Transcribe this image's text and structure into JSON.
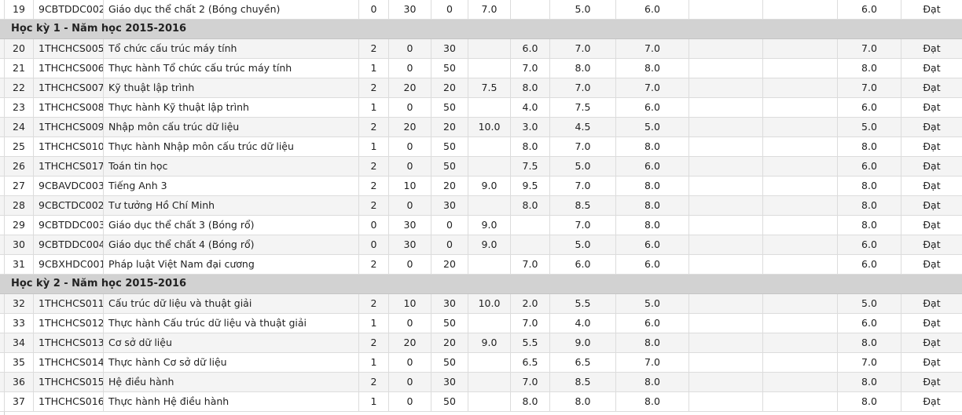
{
  "rows": [
    {
      "type": "course",
      "stt": "19",
      "code": "9CBTDDC002",
      "name": "Giáo dục thể chất 2 (Bóng chuyền)",
      "tc": "0",
      "lt": "30",
      "th": "0",
      "s1": "7.0",
      "s2": "",
      "s3": "5.0",
      "s4": "6.0",
      "s5": "",
      "s6": "",
      "tk": "6.0",
      "kq": "Đạt"
    },
    {
      "type": "section",
      "title": "Học kỳ 1 - Năm học 2015-2016"
    },
    {
      "type": "course",
      "stt": "20",
      "code": "1THCHCS005",
      "name": "Tổ chức cấu trúc máy tính",
      "tc": "2",
      "lt": "0",
      "th": "30",
      "s1": "",
      "s2": "6.0",
      "s3": "7.0",
      "s4": "7.0",
      "s5": "",
      "s6": "",
      "tk": "7.0",
      "kq": "Đạt"
    },
    {
      "type": "course",
      "stt": "21",
      "code": "1THCHCS006",
      "name": "Thực hành Tổ chức cấu trúc máy tính",
      "tc": "1",
      "lt": "0",
      "th": "50",
      "s1": "",
      "s2": "7.0",
      "s3": "8.0",
      "s4": "8.0",
      "s5": "",
      "s6": "",
      "tk": "8.0",
      "kq": "Đạt"
    },
    {
      "type": "course",
      "stt": "22",
      "code": "1THCHCS007",
      "name": "Kỹ thuật lập trình",
      "tc": "2",
      "lt": "20",
      "th": "20",
      "s1": "7.5",
      "s2": "8.0",
      "s3": "7.0",
      "s4": "7.0",
      "s5": "",
      "s6": "",
      "tk": "7.0",
      "kq": "Đạt"
    },
    {
      "type": "course",
      "stt": "23",
      "code": "1THCHCS008",
      "name": "Thực hành Kỹ thuật lập trình",
      "tc": "1",
      "lt": "0",
      "th": "50",
      "s1": "",
      "s2": "4.0",
      "s3": "7.5",
      "s4": "6.0",
      "s5": "",
      "s6": "",
      "tk": "6.0",
      "kq": "Đạt"
    },
    {
      "type": "course",
      "stt": "24",
      "code": "1THCHCS009",
      "name": "Nhập môn cấu trúc dữ liệu",
      "tc": "2",
      "lt": "20",
      "th": "20",
      "s1": "10.0",
      "s2": "3.0",
      "s3": "4.5",
      "s4": "5.0",
      "s5": "",
      "s6": "",
      "tk": "5.0",
      "kq": "Đạt"
    },
    {
      "type": "course",
      "stt": "25",
      "code": "1THCHCS010",
      "name": "Thực hành Nhập môn cấu trúc dữ liệu",
      "tc": "1",
      "lt": "0",
      "th": "50",
      "s1": "",
      "s2": "8.0",
      "s3": "7.0",
      "s4": "8.0",
      "s5": "",
      "s6": "",
      "tk": "8.0",
      "kq": "Đạt"
    },
    {
      "type": "course",
      "stt": "26",
      "code": "1THCHCS017",
      "name": "Toán tin học",
      "tc": "2",
      "lt": "0",
      "th": "50",
      "s1": "",
      "s2": "7.5",
      "s3": "5.0",
      "s4": "6.0",
      "s5": "",
      "s6": "",
      "tk": "6.0",
      "kq": "Đạt"
    },
    {
      "type": "course",
      "stt": "27",
      "code": "9CBAVDC003",
      "name": "Tiếng Anh 3",
      "tc": "2",
      "lt": "10",
      "th": "20",
      "s1": "9.0",
      "s2": "9.5",
      "s3": "7.0",
      "s4": "8.0",
      "s5": "",
      "s6": "",
      "tk": "8.0",
      "kq": "Đạt"
    },
    {
      "type": "course",
      "stt": "28",
      "code": "9CBCTDC002",
      "name": "Tư tưởng Hồ Chí Minh",
      "tc": "2",
      "lt": "0",
      "th": "30",
      "s1": "",
      "s2": "8.0",
      "s3": "8.5",
      "s4": "8.0",
      "s5": "",
      "s6": "",
      "tk": "8.0",
      "kq": "Đạt"
    },
    {
      "type": "course",
      "stt": "29",
      "code": "9CBTDDC003",
      "name": "Giáo dục thể chất 3 (Bóng rổ)",
      "tc": "0",
      "lt": "30",
      "th": "0",
      "s1": "9.0",
      "s2": "",
      "s3": "7.0",
      "s4": "8.0",
      "s5": "",
      "s6": "",
      "tk": "8.0",
      "kq": "Đạt"
    },
    {
      "type": "course",
      "stt": "30",
      "code": "9CBTDDC004",
      "name": "Giáo dục thể chất 4 (Bóng rổ)",
      "tc": "0",
      "lt": "30",
      "th": "0",
      "s1": "9.0",
      "s2": "",
      "s3": "5.0",
      "s4": "6.0",
      "s5": "",
      "s6": "",
      "tk": "6.0",
      "kq": "Đạt"
    },
    {
      "type": "course",
      "stt": "31",
      "code": "9CBXHDC001",
      "name": "Pháp luật Việt Nam đại cương",
      "tc": "2",
      "lt": "0",
      "th": "20",
      "s1": "",
      "s2": "7.0",
      "s3": "6.0",
      "s4": "6.0",
      "s5": "",
      "s6": "",
      "tk": "6.0",
      "kq": "Đạt"
    },
    {
      "type": "section",
      "title": "Học kỳ 2 - Năm học 2015-2016"
    },
    {
      "type": "course",
      "stt": "32",
      "code": "1THCHCS011",
      "name": "Cấu trúc dữ liệu và thuật giải",
      "tc": "2",
      "lt": "10",
      "th": "30",
      "s1": "10.0",
      "s2": "2.0",
      "s3": "5.5",
      "s4": "5.0",
      "s5": "",
      "s6": "",
      "tk": "5.0",
      "kq": "Đạt"
    },
    {
      "type": "course",
      "stt": "33",
      "code": "1THCHCS012",
      "name": "Thực hành Cấu trúc dữ liệu và thuật giải",
      "tc": "1",
      "lt": "0",
      "th": "50",
      "s1": "",
      "s2": "7.0",
      "s3": "4.0",
      "s4": "6.0",
      "s5": "",
      "s6": "",
      "tk": "6.0",
      "kq": "Đạt"
    },
    {
      "type": "course",
      "stt": "34",
      "code": "1THCHCS013",
      "name": "Cơ sở dữ liệu",
      "tc": "2",
      "lt": "20",
      "th": "20",
      "s1": "9.0",
      "s2": "5.5",
      "s3": "9.0",
      "s4": "8.0",
      "s5": "",
      "s6": "",
      "tk": "8.0",
      "kq": "Đạt"
    },
    {
      "type": "course",
      "stt": "35",
      "code": "1THCHCS014",
      "name": "Thực hành Cơ sở dữ liệu",
      "tc": "1",
      "lt": "0",
      "th": "50",
      "s1": "",
      "s2": "6.5",
      "s3": "6.5",
      "s4": "7.0",
      "s5": "",
      "s6": "",
      "tk": "7.0",
      "kq": "Đạt"
    },
    {
      "type": "course",
      "stt": "36",
      "code": "1THCHCS015",
      "name": "Hệ điều hành",
      "tc": "2",
      "lt": "0",
      "th": "30",
      "s1": "",
      "s2": "7.0",
      "s3": "8.5",
      "s4": "8.0",
      "s5": "",
      "s6": "",
      "tk": "8.0",
      "kq": "Đạt"
    },
    {
      "type": "course",
      "stt": "37",
      "code": "1THCHCS016",
      "name": "Thực hành Hệ điều hành",
      "tc": "1",
      "lt": "0",
      "th": "50",
      "s1": "",
      "s2": "8.0",
      "s3": "8.0",
      "s4": "8.0",
      "s5": "",
      "s6": "",
      "tk": "8.0",
      "kq": "Đạt"
    }
  ]
}
